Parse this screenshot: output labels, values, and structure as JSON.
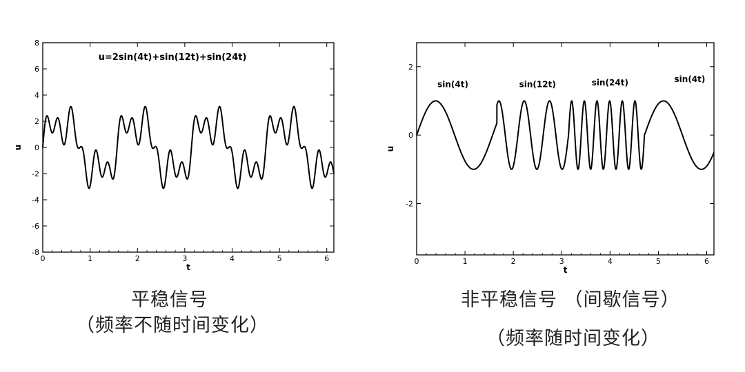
{
  "chart_data": [
    {
      "type": "line",
      "title": "u=2sin(4t)+sin(12t)+sin(24t)",
      "xlabel": "t",
      "ylabel": "u",
      "xlim": [
        0,
        6.15
      ],
      "ylim": [
        -8,
        8
      ],
      "xticks": [
        0,
        1,
        2,
        3,
        4,
        5,
        6
      ],
      "yticks": [
        -8,
        -6,
        -4,
        -2,
        0,
        2,
        4,
        6,
        8
      ],
      "grid": false,
      "series": [
        {
          "formula": "2sin(4t)+sin(12t)+sin(24t)",
          "t_range": [
            0,
            6.15
          ]
        }
      ]
    },
    {
      "type": "line",
      "title": "",
      "xlabel": "t",
      "ylabel": "u",
      "xlim": [
        0,
        6.15
      ],
      "ylim": [
        -3.5,
        2.7
      ],
      "xticks": [
        0,
        1,
        2,
        3,
        4,
        5,
        6
      ],
      "yticks": [
        -2,
        0,
        2
      ],
      "grid": false,
      "segment_labels": [
        {
          "text": "sin(4t)",
          "x": 0.75,
          "y": 1.4
        },
        {
          "text": "sin(12t)",
          "x": 2.5,
          "y": 1.4
        },
        {
          "text": "sin(24t)",
          "x": 4.0,
          "y": 1.45
        },
        {
          "text": "sin(4t)",
          "x": 5.65,
          "y": 1.55
        }
      ],
      "series": [
        {
          "segments": [
            {
              "formula": "sin(4t)",
              "t_range": [
                0,
                1.66
              ]
            },
            {
              "formula": "sin(12t)",
              "t_range": [
                1.66,
                3.14
              ]
            },
            {
              "formula": "sin(24t)",
              "t_range": [
                3.14,
                4.71
              ]
            },
            {
              "formula": "sin(4t)",
              "t_range": [
                4.71,
                6.15
              ]
            }
          ]
        }
      ]
    }
  ],
  "captions": {
    "left_line1": "平稳信号",
    "left_line2": "（频率不随时间变化）",
    "right_line1": "非平稳信号 （间歇信号）",
    "right_line2": "（频率随时间变化）"
  }
}
